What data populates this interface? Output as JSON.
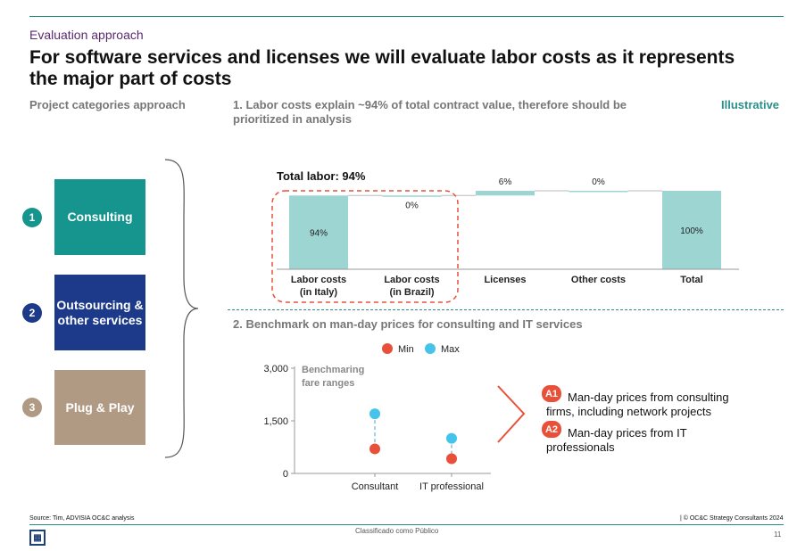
{
  "header": {
    "eyebrow": "Evaluation approach",
    "title": "For software services and licenses we will evaluate labor costs as it represents the major part of costs",
    "left_subtitle": "Project categories approach",
    "right_subtitle": "1. Labor costs explain ~94% of total contract value, therefore should be prioritized in analysis",
    "tag": "Illustrative"
  },
  "categories": [
    {
      "number": "1",
      "label": "Consulting",
      "color": "#16958f"
    },
    {
      "number": "2",
      "label": "Outsourcing & other services",
      "color": "#1d3a8a"
    },
    {
      "number": "3",
      "label": "Plug & Play",
      "color": "#b09a84"
    }
  ],
  "chart_data": [
    {
      "type": "bar",
      "subtype": "waterfall",
      "title": "Total labor: 94%",
      "categories": [
        "Labor costs (in Italy)",
        "Labor costs (in Brazil)",
        "Licenses",
        "Other costs",
        "Total"
      ],
      "category_lines": [
        [
          "Labor costs",
          "(in Italy)"
        ],
        [
          "Labor costs",
          "(in Brazil)"
        ],
        [
          "Licenses"
        ],
        [
          "Other costs"
        ],
        [
          "Total"
        ]
      ],
      "values": [
        94,
        0,
        6,
        0,
        100
      ],
      "labels": [
        "94%",
        "0%",
        "6%",
        "0%",
        "100%"
      ],
      "ylim": [
        0,
        100
      ],
      "color": "#9dd5d3"
    },
    {
      "type": "scatter",
      "subtype": "dumbbell",
      "title": "2. Benchmark on man-day prices for consulting and IT services",
      "annotation": [
        "Benchmaring",
        "fare ranges"
      ],
      "categories": [
        "Consultant",
        "IT professional"
      ],
      "series": [
        {
          "name": "Min",
          "color": "#e8503a",
          "values": [
            700,
            420
          ]
        },
        {
          "name": "Max",
          "color": "#45c3ea",
          "values": [
            1700,
            1000
          ]
        }
      ],
      "ylim": [
        0,
        3000
      ],
      "yticks": [
        "0",
        "1,500",
        "3,000"
      ],
      "ytick_values": [
        0,
        1500,
        3000
      ]
    }
  ],
  "annotations": [
    {
      "badge": "A1",
      "text": "Man-day prices from consulting firms, including network projects"
    },
    {
      "badge": "A2",
      "text": "Man-day prices from IT professionals"
    }
  ],
  "footer": {
    "source": "Source: Tim, ADVISIA OC&C analysis",
    "copyright": "| © OC&C Strategy Consultants 2024",
    "classification": "Classificado como Público",
    "page": "11"
  }
}
